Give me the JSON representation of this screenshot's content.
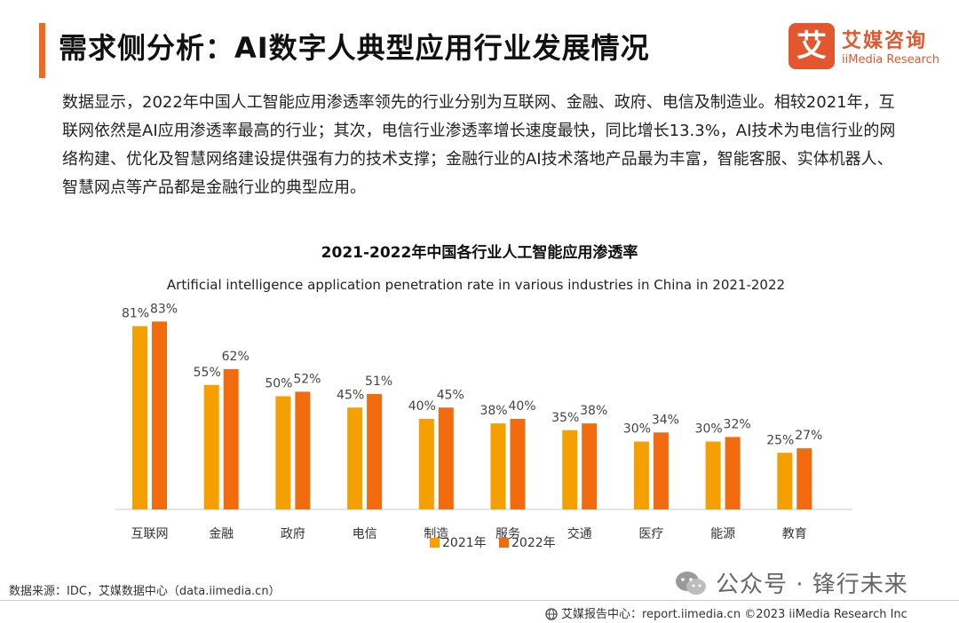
{
  "header": {
    "title": "需求侧分析：AI数字人典型应用行业发展情况",
    "logo_mark": "艾",
    "logo_cn": "艾媒咨询",
    "logo_en": "iiMedia Research",
    "accent_color": "#ED6B21"
  },
  "intro": {
    "paragraph": "数据显示，2022年中国人工智能应用渗透率领先的行业分别为互联网、金融、政府、电信及制造业。相较2021年，互联网依然是AI应用渗透率最高的行业；其次，电信行业渗透率增长速度最快，同比增长13.3%，AI技术为电信行业的网络构建、优化及智慧网络建设提供强有力的技术支撑；金融行业的AI技术落地产品最为丰富，智能客服、实体机器人、智慧网点等产品都是金融行业的典型应用。"
  },
  "chart_data": {
    "type": "bar",
    "title": "2021-2022年中国各行业人工智能应用渗透率",
    "subtitle": "Artificial intelligence application penetration rate in various industries in China in 2021-2022",
    "categories": [
      "互联网",
      "金融",
      "政府",
      "电信",
      "制造",
      "服务",
      "交通",
      "医疗",
      "能源",
      "教育"
    ],
    "series": [
      {
        "name": "2021年",
        "color": "#F5A000",
        "values": [
          81,
          55,
          50,
          45,
          40,
          38,
          35,
          30,
          30,
          25
        ]
      },
      {
        "name": "2022年",
        "color": "#F26B0F",
        "values": [
          83,
          62,
          52,
          51,
          45,
          40,
          38,
          34,
          32,
          27
        ]
      }
    ],
    "value_suffix": "%",
    "ylim": [
      0,
      100
    ],
    "grid": false,
    "legend": "bottom-center"
  },
  "footer": {
    "source": "数据来源：IDC，艾媒数据中心（data.iimedia.cn）",
    "watermark": "公众号 · 锋行未来",
    "report": "艾媒报告中心：report.iimedia.cn  ©2023 iiMedia Research Inc"
  }
}
